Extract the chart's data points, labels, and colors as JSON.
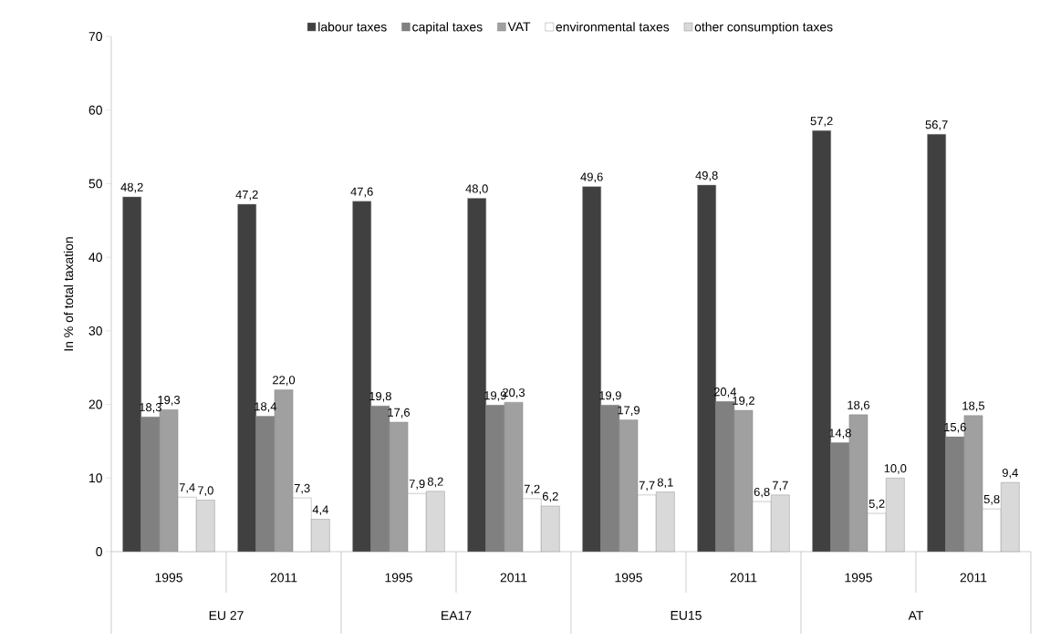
{
  "chart_data": {
    "type": "bar",
    "ylabel": "In % of total taxation",
    "categories": [
      "1995",
      "2011",
      "1995",
      "2011",
      "1995",
      "2011",
      "1995",
      "2011"
    ],
    "annotations": [
      "EU 27",
      "EA17",
      "EU15",
      "AT"
    ],
    "series": [
      {
        "name": "labour taxes",
        "color": "#404040",
        "values": [
          48.2,
          47.2,
          47.6,
          48.0,
          49.6,
          49.8,
          57.2,
          56.7
        ],
        "value_labels": [
          "48,2",
          "47,2",
          "47,6",
          "48,0",
          "49,6",
          "49,8",
          "57,2",
          "56,7"
        ]
      },
      {
        "name": "capital taxes",
        "color": "#808080",
        "values": [
          18.3,
          18.4,
          19.8,
          19.9,
          19.9,
          20.4,
          14.8,
          15.6
        ],
        "value_labels": [
          "18,3",
          "18,4",
          "19,8",
          "19,9",
          "19,9",
          "20,4",
          "14,8",
          "15,6"
        ]
      },
      {
        "name": "VAT",
        "color": "#a0a0a0",
        "values": [
          19.3,
          22.0,
          17.6,
          20.3,
          17.9,
          19.2,
          18.6,
          18.5
        ],
        "value_labels": [
          "19,3",
          "22,0",
          "17,6",
          "20,3",
          "17,9",
          "19,2",
          "18,6",
          "18,5"
        ]
      },
      {
        "name": "environmental taxes",
        "color": "#ffffff",
        "values": [
          7.4,
          7.3,
          7.9,
          7.2,
          7.7,
          6.8,
          5.2,
          5.8
        ],
        "value_labels": [
          "7,4",
          "7,3",
          "7,9",
          "7,2",
          "7,7",
          "6,8",
          "5,2",
          "5,8"
        ]
      },
      {
        "name": "other consumption taxes",
        "color": "#d9d9d9",
        "values": [
          7.0,
          4.4,
          8.2,
          6.2,
          8.1,
          7.7,
          10.0,
          9.4
        ],
        "value_labels": [
          "7,0",
          "4,4",
          "8,2",
          "6,2",
          "8,1",
          "7,7",
          "10,0",
          "9,4"
        ]
      }
    ],
    "ylim": [
      0,
      70
    ],
    "yticks": [
      0,
      10,
      20,
      30,
      40,
      50,
      60,
      70
    ],
    "grid": false,
    "legend": "top"
  }
}
